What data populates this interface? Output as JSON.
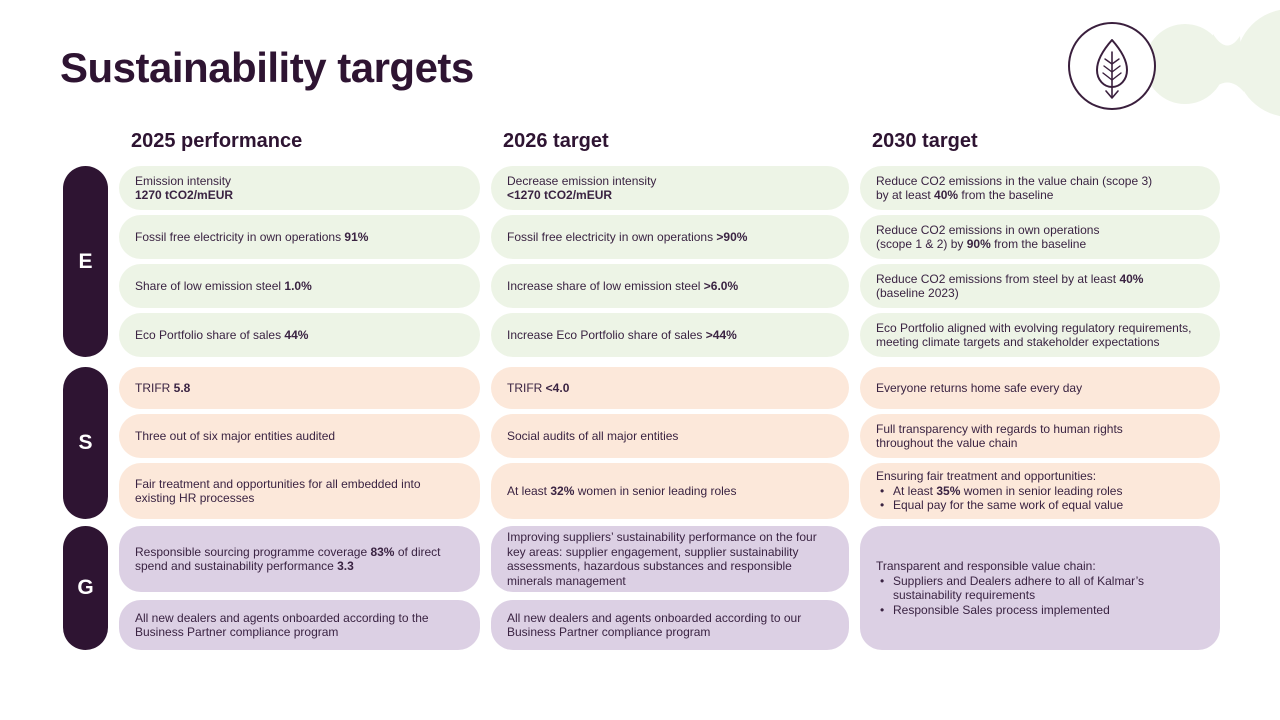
{
  "slide": {
    "title": "Sustainability targets",
    "columns": [
      "2025 performance",
      "2026 target",
      "2030 target"
    ],
    "colors": {
      "dark_purple": "#2e1432",
      "body_text": "#3a2342",
      "green_cell": "#edf4e6",
      "peach_cell": "#fce8da",
      "lavender_cell": "#dcd0e4",
      "decor_green": "#eef4e8",
      "white": "#ffffff"
    },
    "icons": {
      "leaf_badge": "leaf-in-circle",
      "decor_blob": "green-double-circle"
    }
  },
  "sections": [
    {
      "label": "E",
      "tint": "green",
      "rows": [
        {
          "cells": [
            [
              {
                "runs": [
                  {
                    "t": "Emission intensity"
                  }
                ]
              },
              {
                "runs": [
                  {
                    "t": "1270 tCO2/mEUR",
                    "b": true
                  }
                ]
              }
            ],
            [
              {
                "runs": [
                  {
                    "t": "Decrease emission intensity"
                  }
                ]
              },
              {
                "runs": [
                  {
                    "t": "<1270 tCO2/mEUR",
                    "b": true
                  }
                ]
              }
            ],
            [
              {
                "runs": [
                  {
                    "t": "Reduce CO2 emissions in the value chain (scope 3)"
                  }
                ]
              },
              {
                "runs": [
                  {
                    "t": "by at least "
                  },
                  {
                    "t": "40%",
                    "b": true
                  },
                  {
                    "t": " from the baseline"
                  }
                ]
              }
            ]
          ]
        },
        {
          "cells": [
            [
              {
                "runs": [
                  {
                    "t": "Fossil free electricity in own operations "
                  },
                  {
                    "t": "91%",
                    "b": true
                  }
                ]
              }
            ],
            [
              {
                "runs": [
                  {
                    "t": "Fossil free electricity in own operations "
                  },
                  {
                    "t": ">90%",
                    "b": true
                  }
                ]
              }
            ],
            [
              {
                "runs": [
                  {
                    "t": "Reduce CO2 emissions in own operations"
                  }
                ]
              },
              {
                "runs": [
                  {
                    "t": "(scope 1 & 2) by "
                  },
                  {
                    "t": "90%",
                    "b": true
                  },
                  {
                    "t": " from the baseline"
                  }
                ]
              }
            ]
          ]
        },
        {
          "cells": [
            [
              {
                "runs": [
                  {
                    "t": "Share of low emission steel "
                  },
                  {
                    "t": "1.0%",
                    "b": true
                  }
                ]
              }
            ],
            [
              {
                "runs": [
                  {
                    "t": "Increase share of low emission steel "
                  },
                  {
                    "t": ">6.0%",
                    "b": true
                  }
                ]
              }
            ],
            [
              {
                "runs": [
                  {
                    "t": "Reduce CO2 emissions from steel by at least "
                  },
                  {
                    "t": "40%",
                    "b": true
                  }
                ]
              },
              {
                "runs": [
                  {
                    "t": "(baseline 2023)"
                  }
                ]
              }
            ]
          ]
        },
        {
          "cells": [
            [
              {
                "runs": [
                  {
                    "t": "Eco Portfolio share of sales "
                  },
                  {
                    "t": "44%",
                    "b": true
                  }
                ]
              }
            ],
            [
              {
                "runs": [
                  {
                    "t": "Increase Eco Portfolio share of sales "
                  },
                  {
                    "t": ">44%",
                    "b": true
                  }
                ]
              }
            ],
            [
              {
                "runs": [
                  {
                    "t": "Eco Portfolio aligned with evolving regulatory requirements,"
                  }
                ]
              },
              {
                "runs": [
                  {
                    "t": "meeting climate targets and stakeholder expectations"
                  }
                ]
              }
            ]
          ]
        }
      ]
    },
    {
      "label": "S",
      "tint": "peach",
      "rows": [
        {
          "cells": [
            [
              {
                "runs": [
                  {
                    "t": "TRIFR "
                  },
                  {
                    "t": "5.8",
                    "b": true
                  }
                ]
              }
            ],
            [
              {
                "runs": [
                  {
                    "t": "TRIFR "
                  },
                  {
                    "t": "<4.0",
                    "b": true
                  }
                ]
              }
            ],
            [
              {
                "runs": [
                  {
                    "t": "Everyone returns home safe every day"
                  }
                ]
              }
            ]
          ]
        },
        {
          "cells": [
            [
              {
                "runs": [
                  {
                    "t": "Three out of six major entities audited"
                  }
                ]
              }
            ],
            [
              {
                "runs": [
                  {
                    "t": "Social audits of all major entities"
                  }
                ]
              }
            ],
            [
              {
                "runs": [
                  {
                    "t": "Full transparency with regards to human rights"
                  }
                ]
              },
              {
                "runs": [
                  {
                    "t": "throughout the value chain"
                  }
                ]
              }
            ]
          ]
        },
        {
          "cells": [
            [
              {
                "runs": [
                  {
                    "t": "Fair treatment and opportunities for all embedded into"
                  }
                ]
              },
              {
                "runs": [
                  {
                    "t": "existing HR processes"
                  }
                ]
              }
            ],
            [
              {
                "runs": [
                  {
                    "t": "At least "
                  },
                  {
                    "t": "32%",
                    "b": true
                  },
                  {
                    "t": " women in senior leading roles"
                  }
                ]
              }
            ],
            [
              {
                "runs": [
                  {
                    "t": "Ensuring fair treatment and opportunities:"
                  }
                ]
              },
              {
                "bullet": true,
                "runs": [
                  {
                    "t": "At least "
                  },
                  {
                    "t": "35%",
                    "b": true
                  },
                  {
                    "t": " women in senior leading roles"
                  }
                ]
              },
              {
                "bullet": true,
                "runs": [
                  {
                    "t": "Equal pay for the same work of equal value"
                  }
                ]
              }
            ]
          ]
        }
      ]
    },
    {
      "label": "G",
      "tint": "lav",
      "rows": [
        {
          "cells": [
            [
              {
                "runs": [
                  {
                    "t": "Responsible sourcing programme coverage "
                  },
                  {
                    "t": "83%",
                    "b": true
                  },
                  {
                    "t": " of direct"
                  }
                ]
              },
              {
                "runs": [
                  {
                    "t": "spend and sustainability performance "
                  },
                  {
                    "t": "3.3",
                    "b": true
                  }
                ]
              }
            ],
            [
              {
                "runs": [
                  {
                    "t": "Improving suppliers’ sustainability performance on the four"
                  }
                ]
              },
              {
                "runs": [
                  {
                    "t": "key areas: supplier engagement, supplier sustainability"
                  }
                ]
              },
              {
                "runs": [
                  {
                    "t": "assessments, hazardous substances and responsible"
                  }
                ]
              },
              {
                "runs": [
                  {
                    "t": "minerals management"
                  }
                ]
              }
            ],
            [
              {
                "runs": [
                  {
                    "t": "Transparent and responsible value chain:"
                  }
                ]
              },
              {
                "bullet": true,
                "runs": [
                  {
                    "t": "Suppliers and Dealers adhere to all of Kalmar’s sustainability requirements"
                  }
                ]
              },
              {
                "bullet": true,
                "runs": [
                  {
                    "t": "Responsible Sales process implemented"
                  }
                ]
              }
            ]
          ]
        },
        {
          "cells": [
            [
              {
                "runs": [
                  {
                    "t": "All new dealers and agents onboarded according to the"
                  }
                ]
              },
              {
                "runs": [
                  {
                    "t": "Business Partner compliance program"
                  }
                ]
              }
            ],
            [
              {
                "runs": [
                  {
                    "t": "All new dealers and agents onboarded  according to our"
                  }
                ]
              },
              {
                "runs": [
                  {
                    "t": "Business Partner compliance program"
                  }
                ]
              }
            ]
          ]
        }
      ]
    }
  ]
}
